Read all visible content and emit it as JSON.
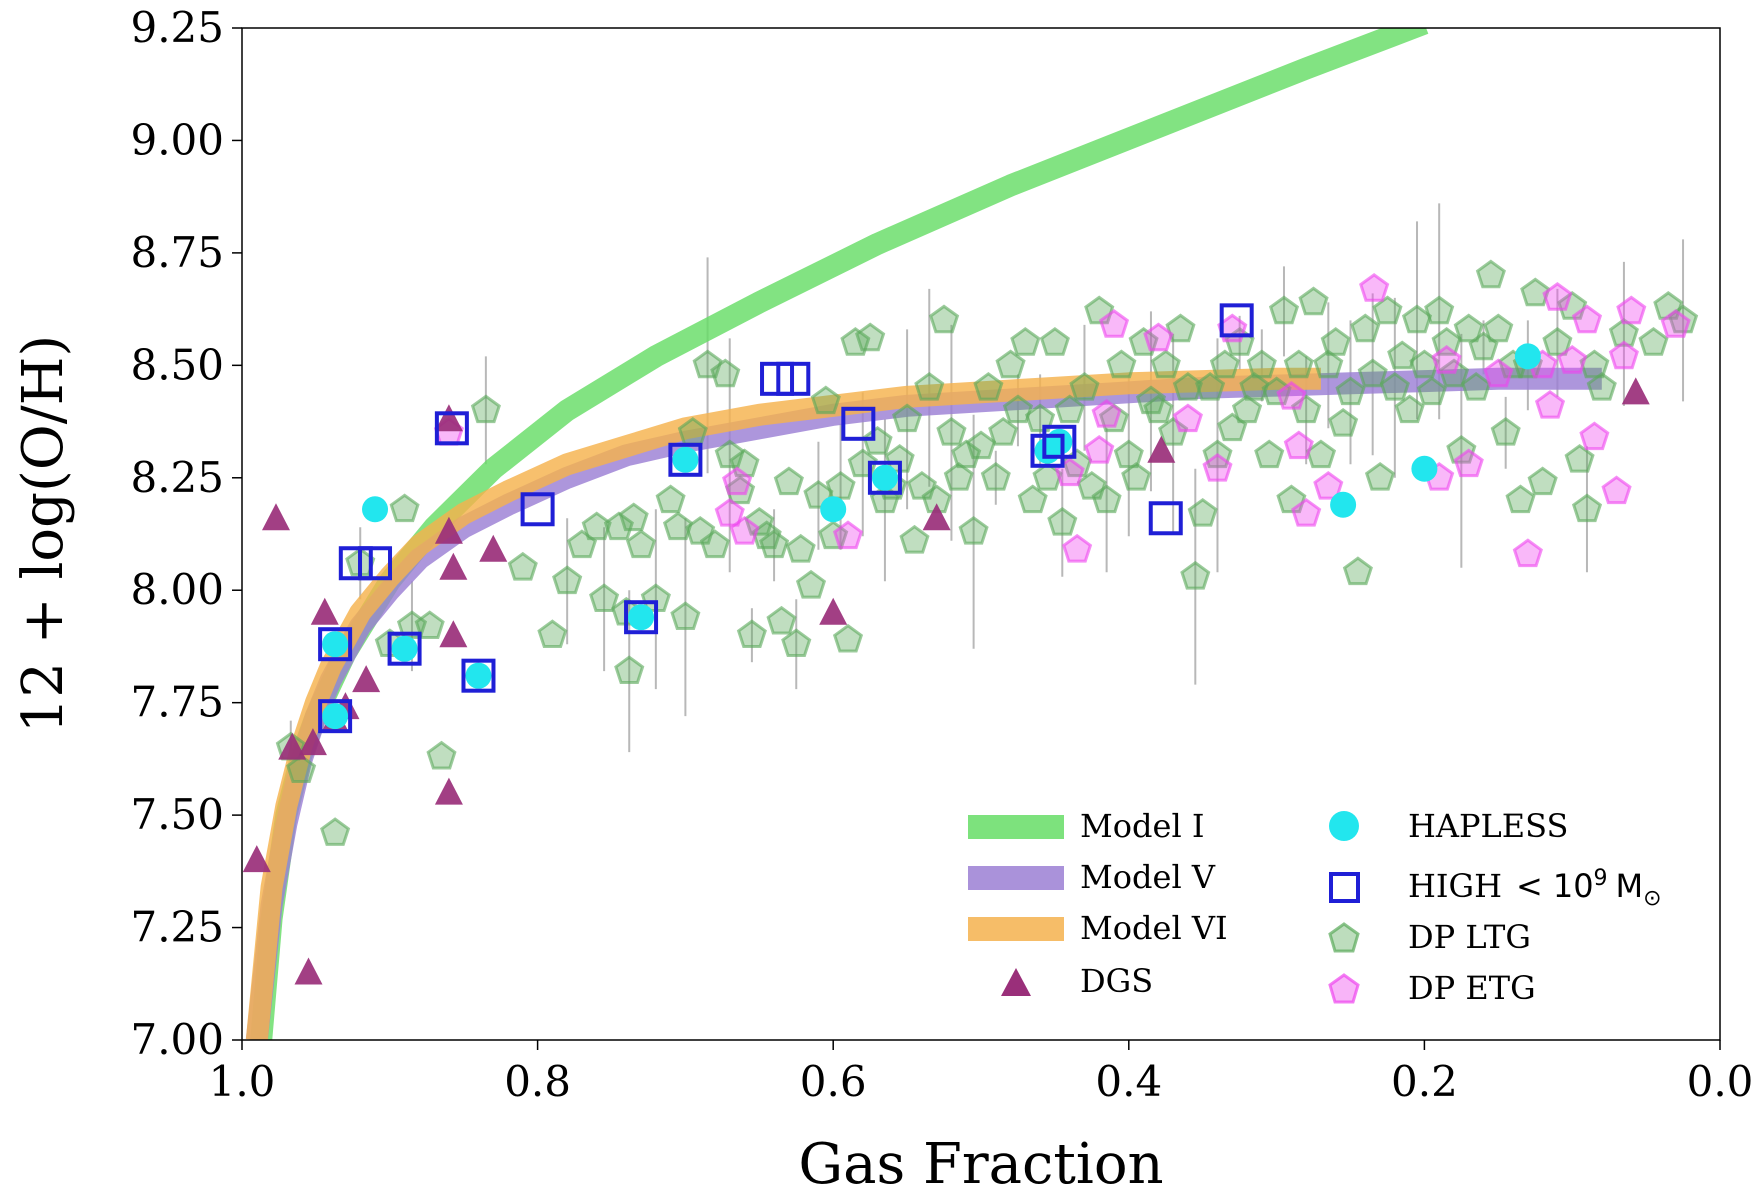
{
  "chart_data": {
    "type": "scatter",
    "xlabel": "Gas Fraction",
    "ylabel": "12 + log(O/H)",
    "xlim": [
      1.0,
      0.0
    ],
    "ylim": [
      7.0,
      9.25
    ],
    "x_reversed": true,
    "xticks": [
      "1.0",
      "0.8",
      "0.6",
      "0.4",
      "0.2",
      "0.0"
    ],
    "yticks": [
      "7.00",
      "7.25",
      "7.50",
      "7.75",
      "8.00",
      "8.25",
      "8.50",
      "8.75",
      "9.00",
      "9.25"
    ],
    "grid": false,
    "legend_position": "bottom-right",
    "models": [
      {
        "name": "Model I",
        "color": "#66dd66",
        "x": [
          0.987,
          0.98,
          0.97,
          0.96,
          0.95,
          0.93,
          0.9,
          0.87,
          0.83,
          0.78,
          0.72,
          0.65,
          0.57,
          0.48,
          0.38,
          0.28,
          0.2
        ],
        "y": [
          7.0,
          7.27,
          7.5,
          7.63,
          7.72,
          7.86,
          8.02,
          8.14,
          8.27,
          8.4,
          8.52,
          8.64,
          8.77,
          8.9,
          9.03,
          9.16,
          9.26
        ]
      },
      {
        "name": "Model V",
        "color": "#9b7fd4",
        "x": [
          0.99,
          0.98,
          0.97,
          0.96,
          0.95,
          0.94,
          0.92,
          0.9,
          0.88,
          0.85,
          0.82,
          0.78,
          0.74,
          0.7,
          0.65,
          0.6,
          0.55,
          0.5,
          0.45,
          0.4,
          0.35,
          0.3,
          0.25,
          0.2,
          0.15,
          0.08
        ],
        "y": [
          7.0,
          7.3,
          7.48,
          7.62,
          7.72,
          7.8,
          7.92,
          8.0,
          8.07,
          8.14,
          8.19,
          8.25,
          8.3,
          8.33,
          8.36,
          8.39,
          8.41,
          8.42,
          8.43,
          8.44,
          8.45,
          8.455,
          8.46,
          8.465,
          8.47,
          8.47
        ]
      },
      {
        "name": "Model VI",
        "color": "#f5b24d",
        "x": [
          0.99,
          0.98,
          0.97,
          0.96,
          0.95,
          0.94,
          0.92,
          0.9,
          0.88,
          0.85,
          0.82,
          0.78,
          0.74,
          0.7,
          0.65,
          0.6,
          0.55,
          0.5,
          0.45,
          0.4,
          0.35,
          0.3,
          0.27
        ],
        "y": [
          7.0,
          7.34,
          7.52,
          7.65,
          7.75,
          7.83,
          7.95,
          8.03,
          8.1,
          8.17,
          8.22,
          8.28,
          8.32,
          8.36,
          8.39,
          8.41,
          8.43,
          8.44,
          8.45,
          8.46,
          8.465,
          8.47,
          8.47
        ]
      }
    ],
    "series": [
      {
        "name": "DGS",
        "marker": "triangle",
        "color": "#9a2f7a",
        "points": [
          [
            0.99,
            7.4
          ],
          [
            0.977,
            8.16
          ],
          [
            0.966,
            7.65
          ],
          [
            0.952,
            7.66
          ],
          [
            0.955,
            7.15
          ],
          [
            0.944,
            7.95
          ],
          [
            0.937,
            7.71
          ],
          [
            0.93,
            7.74
          ],
          [
            0.916,
            7.8
          ],
          [
            0.86,
            8.38
          ],
          [
            0.86,
            8.13
          ],
          [
            0.857,
            8.05
          ],
          [
            0.857,
            7.9
          ],
          [
            0.86,
            7.55
          ],
          [
            0.83,
            8.09
          ],
          [
            0.6,
            7.95
          ],
          [
            0.53,
            8.16
          ],
          [
            0.378,
            8.31
          ],
          [
            0.057,
            8.44
          ]
        ]
      },
      {
        "name": "HAPLESS",
        "marker": "circle",
        "color": "#22e6ee",
        "points": [
          [
            0.91,
            8.18
          ],
          [
            0.6,
            8.18
          ],
          [
            0.255,
            8.19
          ],
          [
            0.2,
            8.27
          ],
          [
            0.13,
            8.52
          ],
          [
            0.937,
            7.72
          ],
          [
            0.937,
            7.88
          ],
          [
            0.89,
            7.87
          ],
          [
            0.84,
            7.81
          ],
          [
            0.73,
            7.94
          ],
          [
            0.7,
            8.29
          ],
          [
            0.565,
            8.25
          ],
          [
            0.455,
            8.31
          ],
          [
            0.447,
            8.33
          ]
        ]
      },
      {
        "name": "HIGH < 10^9 M_sun",
        "marker": "square",
        "color": "#1f1fd6",
        "points": [
          [
            0.937,
            7.72
          ],
          [
            0.937,
            7.88
          ],
          [
            0.91,
            8.06
          ],
          [
            0.923,
            8.06
          ],
          [
            0.89,
            7.87
          ],
          [
            0.858,
            8.36
          ],
          [
            0.84,
            7.81
          ],
          [
            0.8,
            8.18
          ],
          [
            0.73,
            7.94
          ],
          [
            0.7,
            8.29
          ],
          [
            0.638,
            8.47
          ],
          [
            0.627,
            8.47
          ],
          [
            0.583,
            8.37
          ],
          [
            0.565,
            8.25
          ],
          [
            0.455,
            8.31
          ],
          [
            0.447,
            8.33
          ],
          [
            0.375,
            8.16
          ],
          [
            0.327,
            8.6
          ]
        ]
      },
      {
        "name": "DP LTG",
        "marker": "pentagon",
        "color": "#5aa95a",
        "points": [
          [
            0.967,
            7.65
          ],
          [
            0.96,
            7.6
          ],
          [
            0.937,
            7.46
          ],
          [
            0.92,
            8.06
          ],
          [
            0.9,
            7.88
          ],
          [
            0.89,
            8.18
          ],
          [
            0.885,
            7.92
          ],
          [
            0.873,
            7.92
          ],
          [
            0.865,
            7.63
          ],
          [
            0.835,
            8.4
          ],
          [
            0.81,
            8.05
          ],
          [
            0.79,
            7.9
          ],
          [
            0.78,
            8.02
          ],
          [
            0.77,
            8.1
          ],
          [
            0.76,
            8.14
          ],
          [
            0.755,
            7.98
          ],
          [
            0.745,
            8.14
          ],
          [
            0.74,
            7.95
          ],
          [
            0.738,
            7.82
          ],
          [
            0.735,
            8.16
          ],
          [
            0.73,
            8.1
          ],
          [
            0.72,
            7.98
          ],
          [
            0.71,
            8.2
          ],
          [
            0.705,
            8.14
          ],
          [
            0.7,
            7.94
          ],
          [
            0.695,
            8.35
          ],
          [
            0.69,
            8.13
          ],
          [
            0.685,
            8.5
          ],
          [
            0.68,
            8.1
          ],
          [
            0.673,
            8.48
          ],
          [
            0.67,
            8.3
          ],
          [
            0.663,
            8.22
          ],
          [
            0.66,
            8.28
          ],
          [
            0.655,
            7.9
          ],
          [
            0.65,
            8.15
          ],
          [
            0.645,
            8.12
          ],
          [
            0.64,
            8.1
          ],
          [
            0.635,
            7.93
          ],
          [
            0.63,
            8.24
          ],
          [
            0.625,
            7.88
          ],
          [
            0.622,
            8.09
          ],
          [
            0.615,
            8.01
          ],
          [
            0.61,
            8.21
          ],
          [
            0.605,
            8.42
          ],
          [
            0.6,
            8.12
          ],
          [
            0.595,
            8.23
          ],
          [
            0.59,
            7.89
          ],
          [
            0.585,
            8.55
          ],
          [
            0.58,
            8.28
          ],
          [
            0.575,
            8.56
          ],
          [
            0.57,
            8.33
          ],
          [
            0.565,
            8.2
          ],
          [
            0.56,
            8.23
          ],
          [
            0.555,
            8.29
          ],
          [
            0.55,
            8.38
          ],
          [
            0.545,
            8.11
          ],
          [
            0.54,
            8.23
          ],
          [
            0.535,
            8.45
          ],
          [
            0.53,
            8.2
          ],
          [
            0.525,
            8.6
          ],
          [
            0.52,
            8.35
          ],
          [
            0.515,
            8.25
          ],
          [
            0.51,
            8.3
          ],
          [
            0.505,
            8.13
          ],
          [
            0.5,
            8.32
          ],
          [
            0.495,
            8.45
          ],
          [
            0.49,
            8.25
          ],
          [
            0.485,
            8.35
          ],
          [
            0.48,
            8.5
          ],
          [
            0.475,
            8.4
          ],
          [
            0.47,
            8.55
          ],
          [
            0.465,
            8.2
          ],
          [
            0.46,
            8.38
          ],
          [
            0.455,
            8.25
          ],
          [
            0.45,
            8.55
          ],
          [
            0.445,
            8.15
          ],
          [
            0.44,
            8.4
          ],
          [
            0.435,
            8.28
          ],
          [
            0.43,
            8.45
          ],
          [
            0.425,
            8.23
          ],
          [
            0.42,
            8.62
          ],
          [
            0.415,
            8.2
          ],
          [
            0.41,
            8.38
          ],
          [
            0.405,
            8.5
          ],
          [
            0.4,
            8.3
          ],
          [
            0.395,
            8.25
          ],
          [
            0.39,
            8.55
          ],
          [
            0.385,
            8.42
          ],
          [
            0.38,
            8.4
          ],
          [
            0.375,
            8.5
          ],
          [
            0.37,
            8.35
          ],
          [
            0.365,
            8.58
          ],
          [
            0.36,
            8.45
          ],
          [
            0.355,
            8.03
          ],
          [
            0.35,
            8.17
          ],
          [
            0.345,
            8.45
          ],
          [
            0.34,
            8.3
          ],
          [
            0.335,
            8.5
          ],
          [
            0.33,
            8.36
          ],
          [
            0.325,
            8.55
          ],
          [
            0.32,
            8.4
          ],
          [
            0.315,
            8.45
          ],
          [
            0.31,
            8.5
          ],
          [
            0.305,
            8.3
          ],
          [
            0.3,
            8.44
          ],
          [
            0.295,
            8.62
          ],
          [
            0.29,
            8.2
          ],
          [
            0.285,
            8.5
          ],
          [
            0.28,
            8.4
          ],
          [
            0.275,
            8.64
          ],
          [
            0.27,
            8.3
          ],
          [
            0.265,
            8.5
          ],
          [
            0.26,
            8.55
          ],
          [
            0.255,
            8.37
          ],
          [
            0.25,
            8.44
          ],
          [
            0.245,
            8.04
          ],
          [
            0.24,
            8.58
          ],
          [
            0.235,
            8.48
          ],
          [
            0.23,
            8.25
          ],
          [
            0.225,
            8.62
          ],
          [
            0.22,
            8.45
          ],
          [
            0.215,
            8.52
          ],
          [
            0.21,
            8.4
          ],
          [
            0.205,
            8.6
          ],
          [
            0.2,
            8.5
          ],
          [
            0.195,
            8.44
          ],
          [
            0.19,
            8.62
          ],
          [
            0.185,
            8.55
          ],
          [
            0.18,
            8.48
          ],
          [
            0.175,
            8.31
          ],
          [
            0.17,
            8.58
          ],
          [
            0.165,
            8.45
          ],
          [
            0.16,
            8.54
          ],
          [
            0.155,
            8.7
          ],
          [
            0.15,
            8.58
          ],
          [
            0.145,
            8.35
          ],
          [
            0.14,
            8.5
          ],
          [
            0.135,
            8.2
          ],
          [
            0.13,
            8.5
          ],
          [
            0.125,
            8.66
          ],
          [
            0.12,
            8.24
          ],
          [
            0.11,
            8.55
          ],
          [
            0.1,
            8.63
          ],
          [
            0.095,
            8.29
          ],
          [
            0.09,
            8.18
          ],
          [
            0.085,
            8.5
          ],
          [
            0.08,
            8.45
          ],
          [
            0.065,
            8.57
          ],
          [
            0.045,
            8.55
          ],
          [
            0.035,
            8.63
          ],
          [
            0.025,
            8.6
          ]
        ]
      },
      {
        "name": "DP ETG",
        "marker": "pentagon",
        "color": "#ee44ee",
        "points": [
          [
            0.86,
            8.35
          ],
          [
            0.67,
            8.17
          ],
          [
            0.665,
            8.24
          ],
          [
            0.66,
            8.13
          ],
          [
            0.59,
            8.12
          ],
          [
            0.44,
            8.26
          ],
          [
            0.435,
            8.09
          ],
          [
            0.42,
            8.31
          ],
          [
            0.415,
            8.39
          ],
          [
            0.41,
            8.59
          ],
          [
            0.38,
            8.56
          ],
          [
            0.36,
            8.38
          ],
          [
            0.34,
            8.27
          ],
          [
            0.33,
            8.58
          ],
          [
            0.28,
            8.17
          ],
          [
            0.29,
            8.43
          ],
          [
            0.285,
            8.32
          ],
          [
            0.265,
            8.23
          ],
          [
            0.234,
            8.67
          ],
          [
            0.19,
            8.25
          ],
          [
            0.185,
            8.51
          ],
          [
            0.17,
            8.28
          ],
          [
            0.15,
            8.48
          ],
          [
            0.13,
            8.08
          ],
          [
            0.12,
            8.5
          ],
          [
            0.115,
            8.41
          ],
          [
            0.11,
            8.65
          ],
          [
            0.1,
            8.51
          ],
          [
            0.09,
            8.6
          ],
          [
            0.085,
            8.34
          ],
          [
            0.07,
            8.22
          ],
          [
            0.065,
            8.52
          ],
          [
            0.06,
            8.62
          ],
          [
            0.03,
            8.59
          ]
        ]
      }
    ],
    "legend": {
      "model_i": "Model I",
      "model_v": "Model V",
      "model_vi": "Model VI",
      "dgs": "DGS",
      "hapless": "HAPLESS",
      "high_prefix": "HIGH",
      "high_lt": "<",
      "high_base": "10",
      "high_exp": "9",
      "high_unit": "M",
      "high_sub": "⊙",
      "dp_ltg": "DP LTG",
      "dp_etg": "DP ETG"
    }
  }
}
